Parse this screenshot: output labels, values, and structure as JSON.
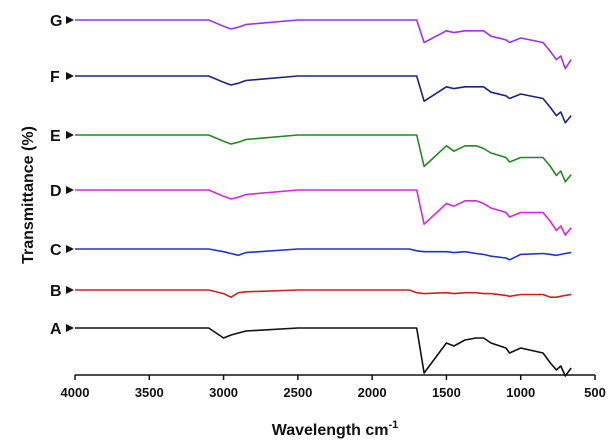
{
  "chart_data": {
    "type": "line",
    "xlabel": "Wavelength cm",
    "xlabel_superscript": "-1",
    "ylabel": "Transmittance (%)",
    "xlim": [
      4000,
      500
    ],
    "x_reversed": true,
    "x_ticks": [
      4000,
      3500,
      3000,
      2500,
      2000,
      1500,
      1000,
      500
    ],
    "x_tick_labels": [
      "4000",
      "3500",
      "3000",
      "2500",
      "2000",
      "1500",
      "1000",
      "500"
    ],
    "y_ticks": false,
    "grid": false,
    "line_labels_position": "left",
    "x": [
      4000,
      3500,
      3100,
      3000,
      2950,
      2900,
      2850,
      2500,
      2000,
      1750,
      1700,
      1650,
      1500,
      1450,
      1375,
      1300,
      1250,
      1200,
      1100,
      1075,
      1000,
      850,
      800,
      760,
      730,
      700,
      660
    ],
    "series": [
      {
        "name": "A",
        "color": "#111111",
        "values": [
          0,
          0,
          0,
          -10,
          -7,
          -5,
          -3,
          0,
          0,
          0,
          0,
          -45,
          -15,
          -18,
          -12,
          -10,
          -10,
          -15,
          -20,
          -25,
          -20,
          -25,
          -35,
          -42,
          -38,
          -48,
          -40
        ]
      },
      {
        "name": "B",
        "color": "#cc2222",
        "values": [
          0,
          0,
          0,
          -4,
          -8,
          -3,
          -2,
          0,
          0,
          0,
          -3,
          -4,
          -3,
          -4,
          -3,
          -3,
          -4,
          -4,
          -6,
          -7,
          -5,
          -5,
          -8,
          -8,
          -7,
          -6,
          -5
        ]
      },
      {
        "name": "C",
        "color": "#2233cc",
        "values": [
          0,
          0,
          0,
          -3,
          -5,
          -7,
          -4,
          0,
          0,
          0,
          -2,
          -3,
          -3,
          -4,
          -3,
          -5,
          -6,
          -8,
          -10,
          -12,
          -6,
          -5,
          -6,
          -7,
          -6,
          -5,
          -4
        ]
      },
      {
        "name": "D",
        "color": "#dd22dd",
        "values": [
          0,
          0,
          0,
          -7,
          -10,
          -8,
          -5,
          0,
          0,
          0,
          0,
          -38,
          -15,
          -18,
          -12,
          -12,
          -15,
          -20,
          -25,
          -30,
          -25,
          -25,
          -35,
          -45,
          -40,
          -50,
          -42
        ]
      },
      {
        "name": "E",
        "color": "#228822",
        "values": [
          0,
          0,
          0,
          -7,
          -10,
          -8,
          -5,
          0,
          0,
          0,
          0,
          -35,
          -12,
          -18,
          -12,
          -12,
          -15,
          -20,
          -25,
          -30,
          -25,
          -25,
          -35,
          -45,
          -40,
          -52,
          -44
        ]
      },
      {
        "name": "F",
        "color": "#1a237e",
        "values": [
          0,
          0,
          0,
          -7,
          -10,
          -8,
          -5,
          0,
          0,
          0,
          0,
          -28,
          -12,
          -14,
          -12,
          -12,
          -12,
          -18,
          -22,
          -25,
          -20,
          -25,
          -35,
          -44,
          -40,
          -52,
          -44
        ]
      },
      {
        "name": "G",
        "color": "#9933ee",
        "values": [
          0,
          0,
          0,
          -7,
          -10,
          -8,
          -5,
          0,
          0,
          0,
          0,
          -25,
          -12,
          -14,
          -12,
          -12,
          -12,
          -18,
          -22,
          -25,
          -20,
          -25,
          -35,
          -44,
          -40,
          -54,
          -44
        ]
      }
    ]
  }
}
